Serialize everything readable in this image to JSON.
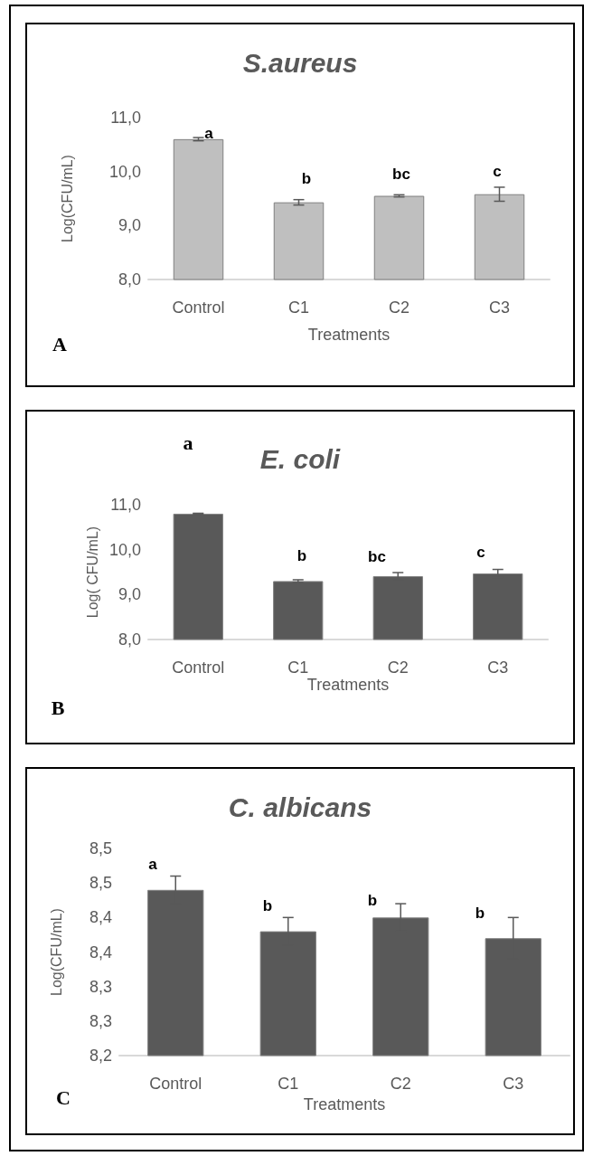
{
  "chart_data": [
    {
      "type": "bar",
      "title": "S.aureus",
      "xlabel": "Treatments",
      "ylabel": "Log(CFU/mL)",
      "categories": [
        "Control",
        "C1",
        "C2",
        "C3"
      ],
      "series": [
        {
          "color": "#bfbfbf",
          "values": [
            10.6,
            9.43,
            9.55,
            9.58
          ],
          "errors": [
            0.03,
            0.05,
            0.02,
            0.13
          ]
        }
      ],
      "ylim": [
        8,
        11
      ],
      "yticks": [
        {
          "value": 8,
          "label": "8,0"
        },
        {
          "value": 9,
          "label": "9,0"
        },
        {
          "value": 10,
          "label": "10,0"
        },
        {
          "value": 11,
          "label": "11,0"
        }
      ],
      "annotations": [
        "a",
        "b",
        "bc",
        "c",
        "A"
      ]
    },
    {
      "type": "bar",
      "title": "E. coli",
      "xlabel": "Treatments",
      "ylabel": "Log( CFU/mL)",
      "categories": [
        "Control",
        "C1",
        "C2",
        "C3"
      ],
      "series": [
        {
          "color": "#595959",
          "values": [
            10.8,
            9.3,
            9.41,
            9.47
          ],
          "errors": [
            0.01,
            0.03,
            0.08,
            0.09
          ]
        }
      ],
      "ylim": [
        8,
        11
      ],
      "yticks": [
        {
          "value": 8,
          "label": "8,0"
        },
        {
          "value": 9,
          "label": "9,0"
        },
        {
          "value": 10,
          "label": "10,0"
        },
        {
          "value": 11,
          "label": "11,0"
        }
      ],
      "annotations": [
        "a",
        "b",
        "bc",
        "c",
        "B"
      ]
    },
    {
      "type": "bar",
      "title": "C. albicans",
      "xlabel": "Treatments",
      "ylabel": "Log(CFU/mL)",
      "categories": [
        "Control",
        "C1",
        "C2",
        "C3"
      ],
      "series": [
        {
          "color": "#595959",
          "values": [
            8.44,
            8.38,
            8.4,
            8.37
          ],
          "errors": [
            0.02,
            0.02,
            0.02,
            0.03
          ]
        }
      ],
      "ylim": [
        8.2,
        8.5
      ],
      "yticks": [
        {
          "value": 8.2,
          "label": "8,2"
        },
        {
          "value": 8.25,
          "label": "8,3"
        },
        {
          "value": 8.3,
          "label": "8,3"
        },
        {
          "value": 8.35,
          "label": "8,4"
        },
        {
          "value": 8.4,
          "label": "8,4"
        },
        {
          "value": 8.45,
          "label": "8,5"
        },
        {
          "value": 8.5,
          "label": "8,5"
        }
      ],
      "annotations": [
        "a",
        "b",
        "b",
        "b",
        "C"
      ]
    }
  ]
}
